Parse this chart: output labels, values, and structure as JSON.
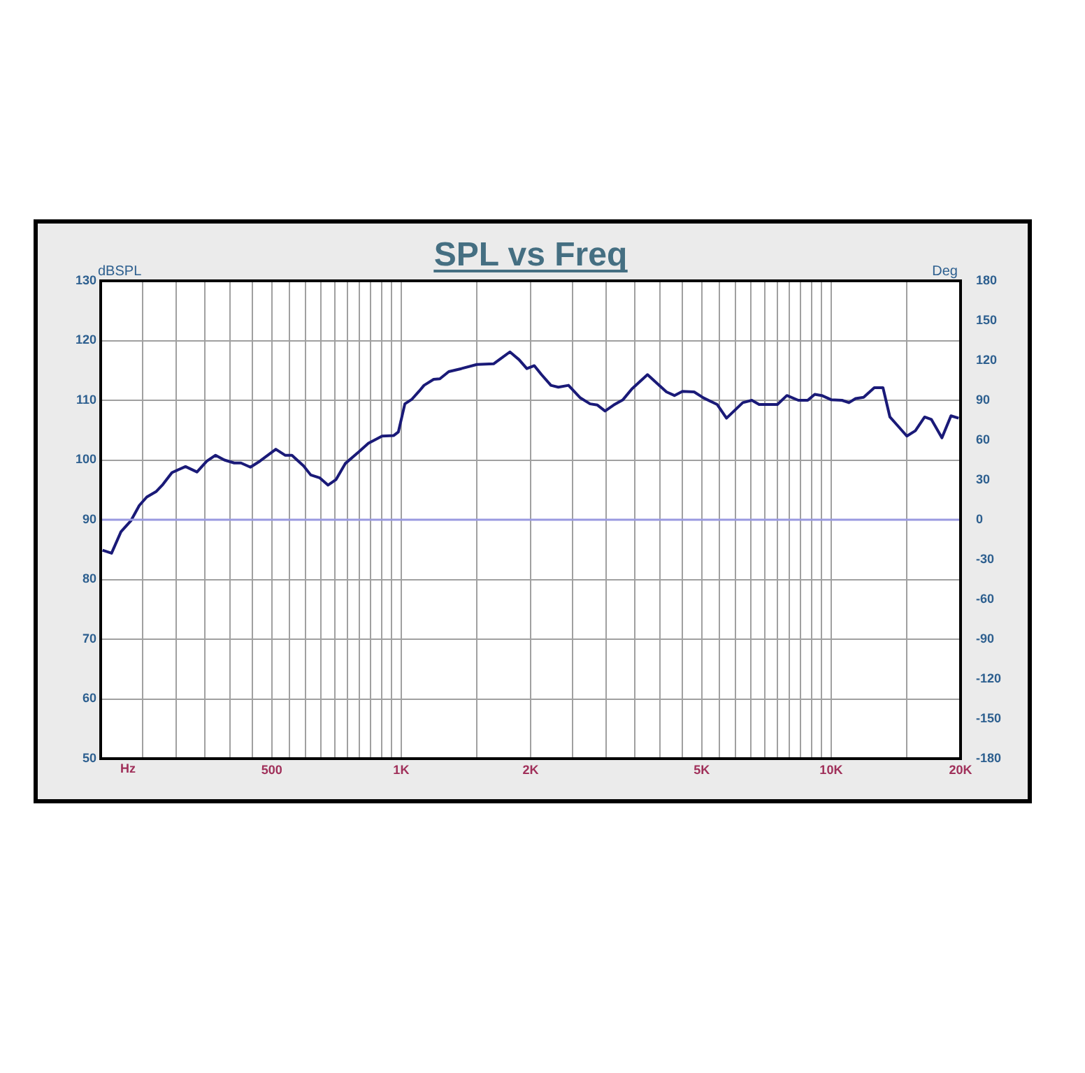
{
  "chart_data": {
    "type": "line",
    "title": "SPL vs Freq",
    "xlabel": "Hz",
    "ylabel": "dBSPL",
    "y2label": "Deg",
    "x": [
      202,
      212,
      223,
      235,
      246,
      256,
      269,
      279,
      293,
      315,
      335,
      353,
      370,
      388,
      409,
      424,
      446,
      469,
      511,
      537,
      557,
      593,
      616,
      647,
      676,
      705,
      741,
      798,
      839,
      903,
      961,
      985,
      1020,
      1060,
      1100,
      1130,
      1190,
      1230,
      1290,
      1380,
      1500,
      1640,
      1790,
      1880,
      1960,
      2040,
      2120,
      2230,
      2320,
      2450,
      2610,
      2750,
      2860,
      2980,
      3120,
      3280,
      3440,
      3740,
      3940,
      4140,
      4320,
      4510,
      4800,
      5050,
      5430,
      5710,
      6230,
      6540,
      6800,
      7500,
      7890,
      8390,
      8820,
      9160,
      9510,
      10000,
      10600,
      11000,
      11400,
      11900,
      12600,
      13200,
      13700,
      14300,
      15000,
      15700,
      16500,
      17100,
      18100,
      19000,
      19800
    ],
    "series": [
      {
        "color": "#1a1a78",
        "values": [
          84.9,
          84.4,
          88.0,
          89.8,
          92.4,
          93.8,
          94.7,
          95.9,
          97.9,
          98.9,
          98.0,
          99.8,
          100.8,
          100.0,
          99.5,
          99.5,
          98.8,
          99.8,
          101.8,
          100.8,
          100.8,
          99.0,
          97.5,
          97.0,
          95.8,
          96.7,
          99.4,
          101.4,
          102.8,
          104.0,
          104.1,
          104.7,
          109.4,
          110.2,
          111.5,
          112.5,
          113.5,
          113.6,
          114.8,
          115.3,
          116.0,
          116.1,
          118.1,
          116.8,
          115.3,
          115.8,
          114.3,
          112.5,
          112.2,
          112.5,
          110.4,
          109.4,
          109.2,
          108.2,
          109.2,
          110.1,
          111.9,
          114.3,
          112.8,
          111.4,
          110.8,
          111.5,
          111.4,
          110.4,
          109.3,
          107.0,
          109.6,
          110.0,
          109.3,
          109.3,
          110.8,
          110.0,
          110.0,
          111.0,
          110.8,
          110.1,
          110.0,
          109.6,
          110.3,
          110.5,
          112.1,
          112.1,
          107.2,
          105.7,
          104.0,
          104.9,
          107.2,
          106.8,
          103.7,
          107.4,
          107.0
        ]
      }
    ],
    "xlim": [
      200,
      20000
    ],
    "xticks": [
      {
        "value": 250,
        "label": null
      },
      {
        "value": 300,
        "label": null
      },
      {
        "value": 350,
        "label": null
      },
      {
        "value": 400,
        "label": null
      },
      {
        "value": 450,
        "label": null
      },
      500,
      {
        "value": 550,
        "label": null
      },
      {
        "value": 600,
        "label": null
      },
      {
        "value": 650,
        "label": null
      },
      {
        "value": 700,
        "label": null
      },
      {
        "value": 750,
        "label": null
      },
      {
        "value": 800,
        "label": null
      },
      {
        "value": 850,
        "label": null
      },
      {
        "value": 900,
        "label": null
      },
      {
        "value": 950,
        "label": null
      },
      {
        "value": 1000,
        "label": "1K"
      },
      {
        "value": 1500,
        "label": null
      },
      {
        "value": 2000,
        "label": "2K"
      },
      {
        "value": 2500,
        "label": null
      },
      {
        "value": 3000,
        "label": null
      },
      {
        "value": 3500,
        "label": null
      },
      {
        "value": 4000,
        "label": null
      },
      {
        "value": 4500,
        "label": null
      },
      {
        "value": 5000,
        "label": "5K"
      },
      {
        "value": 5500,
        "label": null
      },
      {
        "value": 6000,
        "label": null
      },
      {
        "value": 6500,
        "label": null
      },
      {
        "value": 7000,
        "label": null
      },
      {
        "value": 7500,
        "label": null
      },
      {
        "value": 8000,
        "label": null
      },
      {
        "value": 8500,
        "label": null
      },
      {
        "value": 9000,
        "label": null
      },
      {
        "value": 9500,
        "label": null
      },
      {
        "value": 10000,
        "label": "10K"
      },
      {
        "value": 15000,
        "label": null
      },
      {
        "value": 20000,
        "label": "20K"
      }
    ],
    "ylim": [
      50,
      130
    ],
    "yticks": [
      50,
      60,
      70,
      80,
      90,
      100,
      110,
      120,
      130
    ],
    "y2lim": [
      -180,
      180
    ],
    "y2ticks": [
      -180,
      -150,
      -120,
      -90,
      -60,
      -30,
      0,
      30,
      60,
      90,
      120,
      150,
      180
    ],
    "log": "x",
    "grid": true,
    "legend": false,
    "ref_lines": [
      {
        "axis": "y2",
        "value": 0,
        "color": "#9a9ae0"
      }
    ]
  }
}
